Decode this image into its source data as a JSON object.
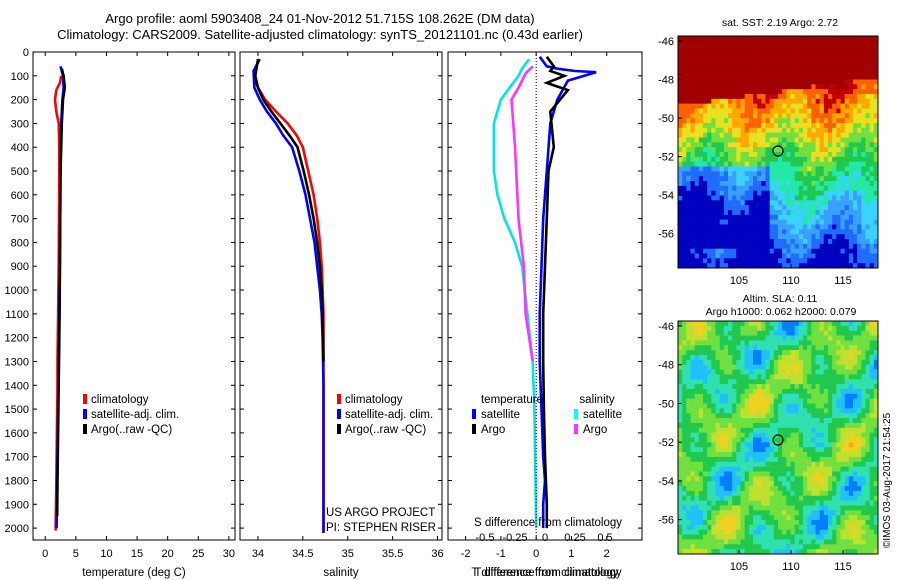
{
  "header": {
    "line1": "Argo profile: aoml 5903408_24 01-Nov-2012 51.715S 108.262E (DM data)",
    "line2": "Climatology: CARS2009. Satellite-adjusted climatology: synTS_20121101.nc (0.43d earlier)"
  },
  "colors": {
    "climatology": "#ff0000",
    "satellite": "#0000ff",
    "argo": "#000000",
    "sal_satellite": "#00ffff",
    "sal_argo": "#ff33ff"
  },
  "depth_ticks": [
    0,
    100,
    200,
    300,
    400,
    500,
    600,
    700,
    800,
    900,
    1000,
    1100,
    1200,
    1300,
    1400,
    1500,
    1600,
    1700,
    1800,
    1900,
    2000
  ],
  "chart_data": [
    {
      "type": "line",
      "id": "temperature",
      "xlabel": "temperature (deg C)",
      "xlim": [
        -2,
        31
      ],
      "ylim": [
        2050,
        0
      ],
      "xticks": [
        0,
        5,
        10,
        15,
        20,
        25,
        30
      ],
      "legend": [
        "climatology",
        "satellite-adj. clim.",
        "Argo(..raw -QC)"
      ],
      "series": [
        {
          "name": "climatology",
          "color": "#ff0000",
          "x": [
            2.6,
            2.4,
            1.8,
            1.6,
            1.8,
            2.2,
            2.3,
            2.3,
            2.25,
            2.2,
            2.15,
            2.1,
            2.05,
            2.0,
            2.0,
            1.95,
            1.9,
            1.85,
            1.8,
            1.75,
            1.7
          ],
          "y": [
            100,
            130,
            160,
            200,
            250,
            300,
            400,
            500,
            700,
            900,
            1000,
            1100,
            1200,
            1300,
            1400,
            1500,
            1600,
            1700,
            1800,
            1900,
            2010
          ]
        },
        {
          "name": "satellite-adj. clim.",
          "color": "#0000ff",
          "x": [
            2.5,
            2.9,
            3.0,
            2.8,
            2.6,
            2.5,
            2.5,
            2.45,
            2.4,
            2.35,
            2.3,
            2.25,
            2.2,
            2.15,
            2.1,
            2.05,
            2.0,
            1.95,
            1.9,
            1.85
          ],
          "y": [
            60,
            100,
            150,
            200,
            300,
            400,
            500,
            700,
            900,
            1000,
            1100,
            1200,
            1300,
            1400,
            1500,
            1600,
            1700,
            1800,
            1900,
            2000
          ]
        },
        {
          "name": "Argo(..raw -QC)",
          "color": "#000000",
          "x": [
            2.7,
            3.0,
            3.2,
            2.9,
            2.7,
            2.6,
            2.5,
            2.45,
            2.4,
            2.35,
            2.3,
            2.25,
            2.2,
            2.15,
            2.1,
            2.05,
            2.0,
            1.95
          ],
          "y": [
            70,
            100,
            150,
            200,
            300,
            400,
            500,
            700,
            900,
            1100,
            1200,
            1300,
            1400,
            1500,
            1600,
            1700,
            1800,
            1950
          ]
        }
      ]
    },
    {
      "type": "line",
      "id": "salinity",
      "xlabel": "salinity",
      "xlim": [
        33.8,
        36.05
      ],
      "ylim": [
        2050,
        0
      ],
      "xticks": [
        34,
        34.5,
        35,
        35.5,
        36
      ],
      "xticklabels": [
        "34",
        "34.5",
        "35",
        "35.5",
        "36"
      ],
      "legend": [
        "climatology",
        "satellite-adj. clim."
      ],
      "series": [
        {
          "name": "climatology",
          "color": "#ff0000",
          "x": [
            33.95,
            34.0,
            34.08,
            34.2,
            34.33,
            34.43,
            34.5,
            34.56,
            34.62,
            34.66,
            34.69,
            34.71,
            34.72,
            34.73,
            34.73,
            34.73,
            34.73
          ],
          "y": [
            100,
            150,
            200,
            250,
            300,
            350,
            400,
            500,
            600,
            700,
            800,
            900,
            1000,
            1100,
            1200,
            1400,
            2020
          ]
        },
        {
          "name": "satellite-adj. clim.",
          "color": "#0000ff",
          "x": [
            34.02,
            33.95,
            33.96,
            34.02,
            34.1,
            34.2,
            34.28,
            34.38,
            34.46,
            34.53,
            34.58,
            34.63,
            34.66,
            34.69,
            34.71,
            34.72,
            34.73,
            34.73
          ],
          "y": [
            30,
            80,
            150,
            200,
            250,
            300,
            350,
            400,
            500,
            600,
            700,
            800,
            900,
            1000,
            1100,
            1200,
            1400,
            2020
          ]
        },
        {
          "name": "Argo(..raw -QC)",
          "color": "#000000",
          "x": [
            34.0,
            33.97,
            34.0,
            34.06,
            34.15,
            34.25,
            34.35,
            34.44,
            34.51,
            34.57,
            34.62,
            34.66,
            34.69,
            34.71,
            34.72,
            34.73
          ],
          "y": [
            30,
            100,
            150,
            200,
            250,
            300,
            350,
            400,
            500,
            600,
            700,
            800,
            900,
            1000,
            1100,
            1300
          ]
        }
      ]
    },
    {
      "type": "line",
      "id": "differences",
      "xlabel": "T difference from climatology",
      "xlabel2": "S difference from climatology",
      "xlim": [
        -2.5,
        3
      ],
      "ylim": [
        2050,
        0
      ],
      "xticks": [
        -2,
        -1,
        0,
        1,
        2
      ],
      "s_ticks": [
        "-0.5",
        "-0.25",
        "0",
        "0.25",
        "0.5"
      ],
      "legend_temperature_title": "temperature",
      "legend_salinity_title": "salinity",
      "legend_temperature": [
        "satellite",
        "Argo"
      ],
      "legend_salinity": [
        "satellite",
        "Argo"
      ],
      "series": [
        {
          "name": "satellite",
          "color": "#0000ff",
          "x": [
            0.1,
            0.2,
            0.3,
            0.6,
            1.1,
            1.7,
            0.9,
            0.6,
            0.4,
            0.3,
            0.2,
            0.15,
            0.1,
            0.1,
            0.15,
            0.2,
            0.25,
            0.2,
            0.2
          ],
          "y": [
            20,
            40,
            60,
            70,
            80,
            85,
            120,
            200,
            300,
            500,
            700,
            900,
            1100,
            1300,
            1500,
            1700,
            1800,
            1900,
            2000
          ]
        },
        {
          "name": "Argo",
          "color": "#000000",
          "x": [
            0.3,
            0.5,
            0.4,
            0.8,
            0.3,
            0.9,
            0.4,
            0.5,
            0.35,
            0.3,
            0.25,
            0.2,
            0.2,
            0.22,
            0.25,
            0.3,
            0.3
          ],
          "y": [
            20,
            60,
            80,
            100,
            130,
            160,
            250,
            400,
            500,
            700,
            900,
            1100,
            1300,
            1500,
            1700,
            1900,
            2000
          ]
        },
        {
          "name": "satellite",
          "color": "#00e5e5",
          "x": [
            -0.2,
            -0.4,
            -0.5,
            -1.0,
            -1.2,
            -1.2,
            -1.1,
            -0.9,
            -0.6,
            -0.4,
            -0.25,
            -0.1,
            -0.05,
            -0.02,
            0.0
          ],
          "y": [
            30,
            70,
            100,
            200,
            300,
            500,
            600,
            700,
            800,
            900,
            1100,
            1300,
            1500,
            1800,
            2000
          ]
        },
        {
          "name": "Argo",
          "color": "#ff33ff",
          "x": [
            -0.1,
            -0.3,
            -0.5,
            -0.7,
            -0.6,
            -0.5,
            -0.35,
            -0.3,
            -0.2,
            -0.1
          ],
          "y": [
            60,
            90,
            150,
            200,
            400,
            700,
            900,
            1100,
            1200,
            1300
          ]
        }
      ]
    }
  ],
  "texts": {
    "project1": "US ARGO PROJECT",
    "project2": "PI: STEPHEN RISER",
    "map1_title": "sat. SST: 2.19 Argo: 2.72",
    "map2_title1": "Altim. SLA: 0.11",
    "map2_title2": "Argo h1000: 0.062 h2000: 0.079",
    "credit": "©IMOS 03-Aug-2017 21:54:25"
  },
  "maps": {
    "yticks": [
      "-46",
      "-48",
      "-50",
      "-52",
      "-54",
      "-56"
    ],
    "xticks": [
      "105",
      "110",
      "115"
    ]
  }
}
